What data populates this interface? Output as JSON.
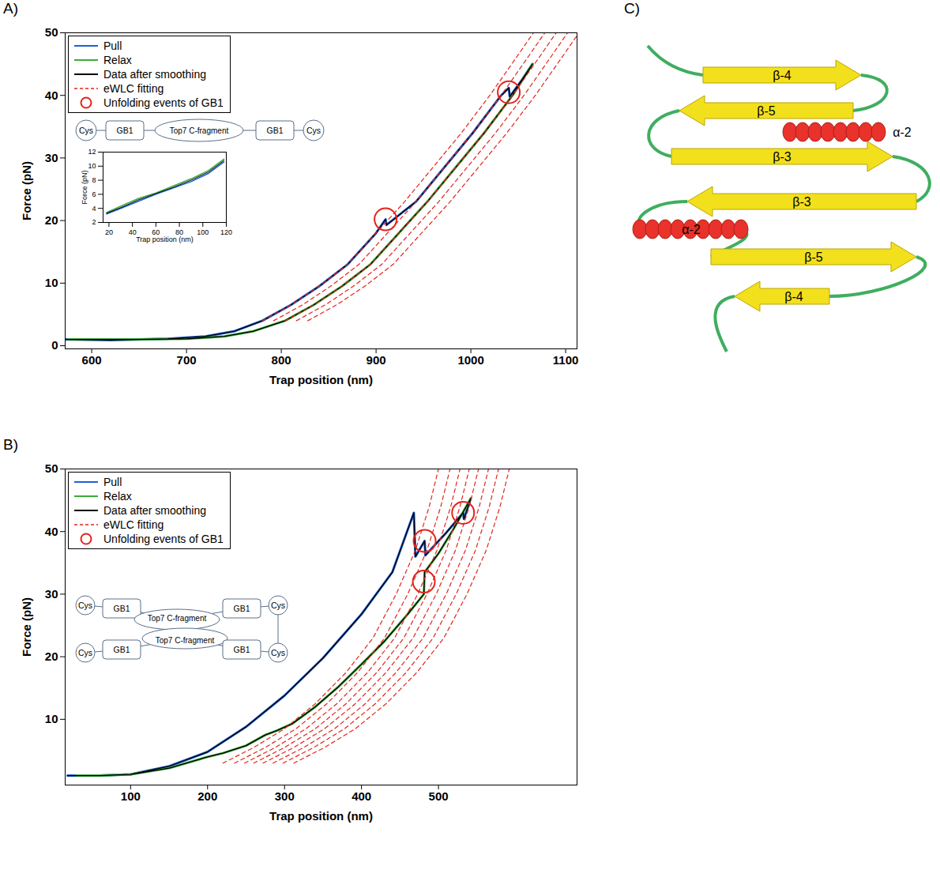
{
  "chart_data": [
    {
      "type": "line",
      "panel": "A)",
      "xlabel": "Trap position (nm)",
      "ylabel": "Force (pN)",
      "xlim": [
        572,
        1112
      ],
      "ylim": [
        -0.5,
        50
      ],
      "xticks": [
        600,
        700,
        800,
        900,
        1000,
        1100
      ],
      "yticks": [
        0,
        10,
        20,
        30,
        40,
        50
      ],
      "legend": "top-left",
      "series": [
        {
          "name": "Pull",
          "color": "#1f5fd6",
          "line_style": "solid",
          "x": [
            572,
            620,
            680,
            720,
            750,
            780,
            810,
            840,
            870,
            900,
            910,
            911,
            942,
            972,
            1002,
            1032,
            1040,
            1041,
            1054,
            1065
          ],
          "values": [
            1,
            0.9,
            1.1,
            1.5,
            2.3,
            4,
            6.5,
            9.5,
            13,
            18,
            20.2,
            19.3,
            23,
            28.5,
            34,
            40,
            41.2,
            39.8,
            42.5,
            45
          ]
        },
        {
          "name": "Relax",
          "color": "#3cab3c",
          "line_style": "solid",
          "x": [
            1065,
            1044,
            1014,
            984,
            954,
            924,
            894,
            864,
            834,
            804,
            770,
            740,
            700,
            640,
            575
          ],
          "values": [
            45,
            40,
            34,
            28.5,
            23,
            18,
            13,
            9.5,
            6.5,
            4,
            2.3,
            1.5,
            1.1,
            1,
            1
          ]
        },
        {
          "name": "Data after smoothing",
          "color": "#000000",
          "line_style": "solid",
          "x": [
            572,
            620,
            680,
            720,
            750,
            780,
            810,
            840,
            870,
            900,
            910,
            911,
            942,
            972,
            1002,
            1032,
            1040,
            1041,
            1054,
            1065,
            null,
            1065,
            1044,
            1014,
            984,
            954,
            924,
            894,
            864,
            834,
            804,
            770,
            740,
            700,
            640,
            575
          ],
          "values": [
            1,
            0.9,
            1.1,
            1.5,
            2.3,
            4,
            6.5,
            9.5,
            13,
            18,
            20.2,
            19.3,
            23,
            28.5,
            34,
            40,
            41.2,
            39.8,
            42.5,
            45,
            null,
            45,
            40,
            34,
            28.5,
            23,
            18,
            13,
            9.5,
            6.5,
            4,
            2.3,
            1.5,
            1.1,
            1,
            1
          ]
        },
        {
          "name": "eWLC fitting",
          "color": "#e3241c",
          "line_style": "dashed",
          "x": [
            780,
            810,
            840,
            870,
            900,
            930,
            960,
            990,
            1020,
            1050,
            1066,
            null,
            792,
            822,
            852,
            882,
            912,
            942,
            972,
            1002,
            1032,
            1062,
            1078,
            null,
            804,
            834,
            864,
            894,
            924,
            954,
            984,
            1014,
            1044,
            1074,
            1090,
            null,
            816,
            846,
            876,
            906,
            936,
            966,
            996,
            1026,
            1056,
            1086,
            1102,
            null,
            828,
            858,
            888,
            918,
            948,
            978,
            1008,
            1038,
            1068,
            1098,
            1114
          ],
          "values": [
            4,
            6.5,
            9.5,
            13,
            18,
            23,
            28.5,
            34,
            40,
            46.5,
            50,
            null,
            4,
            6.5,
            9.5,
            13,
            18,
            23,
            28.5,
            34,
            40,
            46.5,
            50,
            null,
            4,
            6.5,
            9.5,
            13,
            18,
            23,
            28.5,
            34,
            40,
            46.5,
            50,
            null,
            4,
            6.5,
            9.5,
            13,
            18,
            23,
            28.5,
            34,
            40,
            46.5,
            50,
            null,
            4,
            6.5,
            9.5,
            13,
            18,
            23,
            28.5,
            34,
            40,
            46.5,
            50
          ]
        },
        {
          "name": "Unfolding events of GB1",
          "type": "scatter",
          "marker": "open_circle",
          "color": "#e3241c",
          "x": [
            910,
            1040
          ],
          "values": [
            20.2,
            40.5
          ]
        }
      ],
      "schematic": {
        "labels": [
          "Cys",
          "GB1",
          "Top7 C-fragment",
          "GB1",
          "Cys"
        ]
      },
      "inset": {
        "type": "line",
        "xlabel": "Trap position (nm)",
        "ylabel": "Force (pN)",
        "xlim": [
          15,
          120
        ],
        "ylim": [
          2,
          12
        ],
        "xticks": [
          20,
          40,
          60,
          80,
          100,
          120
        ],
        "yticks": [
          2,
          4,
          6,
          8,
          10,
          12
        ],
        "series": [
          {
            "color": "#1f5fd6",
            "x": [
              18,
              30,
              45,
              60,
              75,
              90,
              105,
              118
            ],
            "values": [
              3.2,
              4,
              5,
              6,
              6.9,
              7.8,
              9,
              10.6
            ]
          },
          {
            "color": "#3cab3c",
            "x": [
              18,
              30,
              45,
              60,
              75,
              90,
              105,
              118
            ],
            "values": [
              3.4,
              4.3,
              5.4,
              6.2,
              7.2,
              8.2,
              9.4,
              11
            ]
          },
          {
            "color": "#000000",
            "x": [
              18,
              30,
              45,
              60,
              75,
              90,
              105,
              118
            ],
            "values": [
              3.3,
              4.1,
              5.2,
              6.1,
              7,
              8,
              9.2,
              10.8
            ]
          }
        ]
      }
    },
    {
      "type": "line",
      "panel": "B)",
      "xlabel": "Trap position (nm)",
      "ylabel": "Force (pN)",
      "xlim": [
        15,
        680
      ],
      "ylim": [
        -0.5,
        50
      ],
      "xticks": [
        100,
        200,
        300,
        400,
        500
      ],
      "yticks": [
        10,
        20,
        30,
        40,
        50
      ],
      "legend": "top-left",
      "series": [
        {
          "name": "Pull",
          "color": "#1f5fd6",
          "line_style": "solid",
          "x": [
            18,
            60,
            100,
            150,
            200,
            250,
            300,
            350,
            400,
            440,
            468,
            470,
            482,
            483,
            510,
            532,
            533,
            542
          ],
          "values": [
            1,
            1,
            1.2,
            2.5,
            4.8,
            8.8,
            13.8,
            19.8,
            26.8,
            33.5,
            43,
            36,
            38.5,
            36.2,
            39.8,
            43,
            42,
            45.3
          ]
        },
        {
          "name": "Relax",
          "color": "#3cab3c",
          "line_style": "solid",
          "x": [
            542,
            520,
            500,
            482,
            481,
            460,
            430,
            400,
            370,
            340,
            310,
            290,
            275,
            250,
            220,
            200,
            150,
            100,
            60,
            30
          ],
          "values": [
            45.3,
            40.5,
            36.5,
            33.5,
            30,
            26.8,
            22.5,
            18.8,
            15.2,
            12,
            9.3,
            8.2,
            7.5,
            5.8,
            4.6,
            4,
            2.2,
            1.2,
            1,
            1
          ]
        },
        {
          "name": "Data after smoothing",
          "color": "#000000",
          "line_style": "solid",
          "x": [
            18,
            60,
            100,
            150,
            200,
            250,
            300,
            350,
            400,
            440,
            468,
            470,
            482,
            483,
            510,
            532,
            533,
            542,
            null,
            542,
            520,
            500,
            482,
            481,
            460,
            430,
            400,
            370,
            340,
            310,
            290,
            275,
            250,
            220,
            200,
            150,
            100,
            60,
            30
          ],
          "values": [
            1,
            1,
            1.2,
            2.5,
            4.8,
            8.8,
            13.8,
            19.8,
            26.8,
            33.5,
            43,
            36,
            38.5,
            36.2,
            39.8,
            43,
            42,
            45.3,
            null,
            45.3,
            40.5,
            36.5,
            33.5,
            30,
            26.8,
            22.5,
            18.8,
            15.2,
            12,
            9.3,
            8.2,
            7.5,
            5.8,
            4.6,
            4,
            2.2,
            1.2,
            1,
            1
          ]
        },
        {
          "name": "eWLC fitting",
          "color": "#e3241c",
          "line_style": "dashed",
          "x": [
            220,
            260,
            300,
            340,
            380,
            415,
            445,
            470,
            488,
            500,
            null,
            235,
            275,
            315,
            355,
            395,
            430,
            460,
            485,
            503,
            515,
            null,
            248,
            288,
            328,
            368,
            408,
            443,
            473,
            498,
            516,
            528,
            null,
            260,
            300,
            340,
            380,
            420,
            455,
            485,
            510,
            528,
            540,
            null,
            272,
            312,
            352,
            392,
            432,
            467,
            497,
            522,
            540,
            552,
            null,
            285,
            325,
            365,
            405,
            445,
            480,
            510,
            535,
            553,
            565,
            null,
            298,
            338,
            378,
            418,
            458,
            493,
            523,
            548,
            566,
            578,
            null,
            312,
            352,
            392,
            432,
            472,
            507,
            537,
            562,
            580,
            592
          ],
          "values": [
            3,
            5.5,
            8.5,
            12.5,
            17.5,
            23,
            30,
            37,
            44,
            50,
            null,
            3,
            5.5,
            8.5,
            12.5,
            17.5,
            23,
            30,
            37,
            44,
            50,
            null,
            3,
            5.5,
            8.5,
            12.5,
            17.5,
            23,
            30,
            37,
            44,
            50,
            null,
            3,
            5.5,
            8.5,
            12.5,
            17.5,
            23,
            30,
            37,
            44,
            50,
            null,
            3,
            5.5,
            8.5,
            12.5,
            17.5,
            23,
            30,
            37,
            44,
            50,
            null,
            3,
            5.5,
            8.5,
            12.5,
            17.5,
            23,
            30,
            37,
            44,
            50,
            null,
            3,
            5.5,
            8.5,
            12.5,
            17.5,
            23,
            30,
            37,
            44,
            50,
            null,
            3,
            5.5,
            8.5,
            12.5,
            17.5,
            23,
            30,
            37,
            44,
            50
          ]
        },
        {
          "name": "Unfolding events of GB1",
          "type": "scatter",
          "marker": "open_circle",
          "color": "#e3241c",
          "x": [
            482,
            532,
            481
          ],
          "values": [
            38.5,
            43,
            32
          ]
        }
      ],
      "schematic": {
        "labels": [
          "Cys",
          "GB1",
          "Cys",
          "GB1",
          "Top7 C-fragment",
          "Top7 C-fragment",
          "GB1",
          "Cys",
          "GB1",
          "Cys"
        ]
      }
    }
  ],
  "diagram": {
    "panel": "C)",
    "labels": [
      "β-4",
      "β-5",
      "α-2",
      "β-3",
      "β-3",
      "α-2",
      "β-5",
      "β-4"
    ]
  }
}
